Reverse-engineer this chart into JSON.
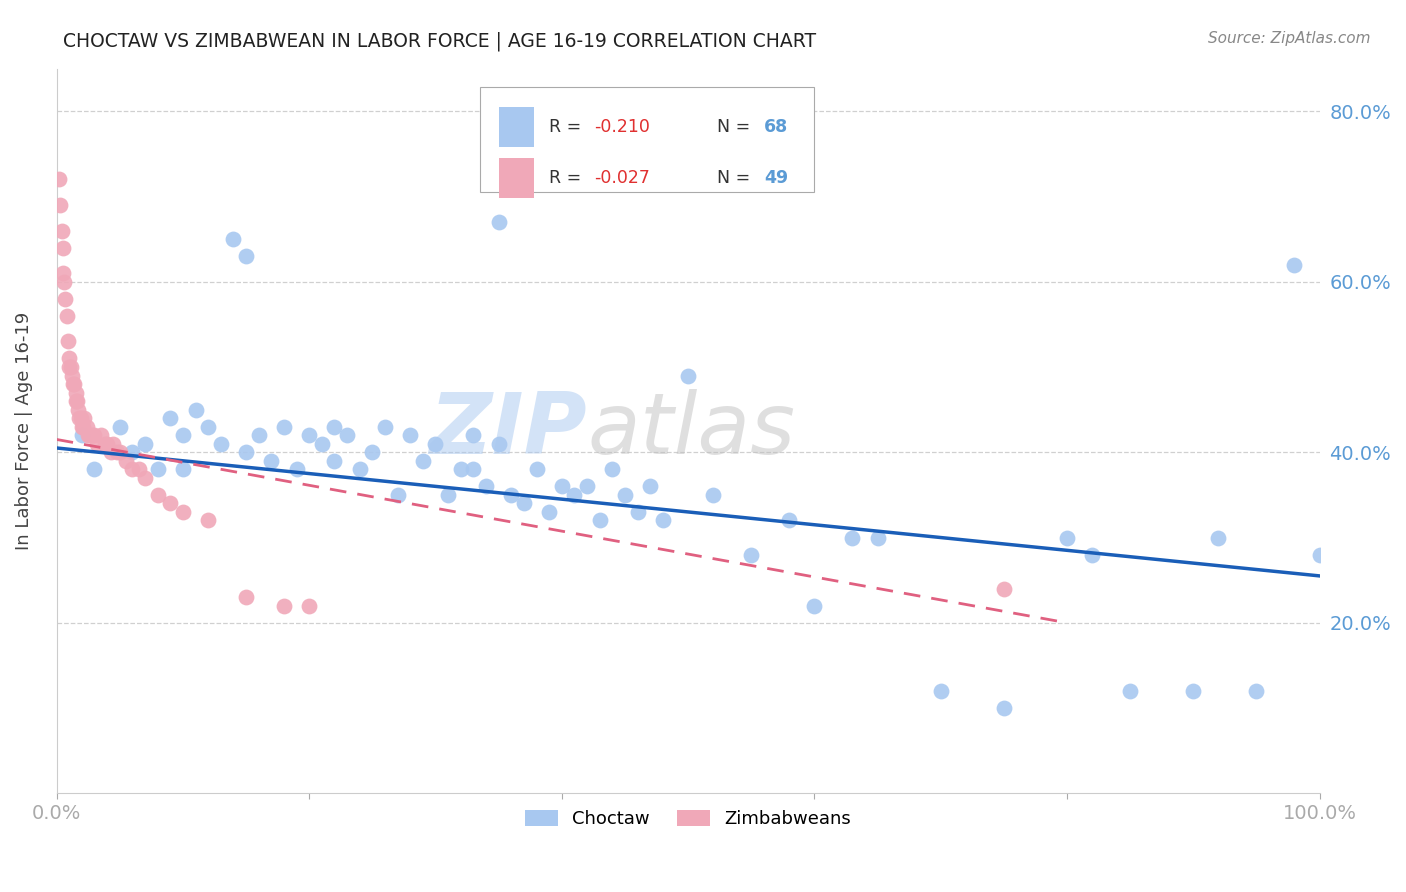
{
  "title": "CHOCTAW VS ZIMBABWEAN IN LABOR FORCE | AGE 16-19 CORRELATION CHART",
  "source": "Source: ZipAtlas.com",
  "ylabel": "In Labor Force | Age 16-19",
  "xlim": [
    0.0,
    1.0
  ],
  "ylim": [
    0.0,
    0.85
  ],
  "yticks": [
    0.2,
    0.4,
    0.6,
    0.8
  ],
  "ytick_labels": [
    "20.0%",
    "40.0%",
    "60.0%",
    "80.0%"
  ],
  "choctaw_color": "#a8c8f0",
  "zimbabwean_color": "#f0a8b8",
  "choctaw_line_color": "#1a5eb8",
  "zimbabwean_line_color": "#e06080",
  "grid_color": "#d0d0d0",
  "background_color": "#ffffff",
  "watermark_zip": "ZIP",
  "watermark_atlas": "atlas",
  "choctaw_x": [
    0.02,
    0.03,
    0.05,
    0.06,
    0.07,
    0.08,
    0.09,
    0.1,
    0.1,
    0.11,
    0.12,
    0.13,
    0.14,
    0.15,
    0.15,
    0.16,
    0.17,
    0.18,
    0.19,
    0.2,
    0.21,
    0.22,
    0.22,
    0.23,
    0.24,
    0.25,
    0.26,
    0.27,
    0.28,
    0.29,
    0.3,
    0.31,
    0.32,
    0.33,
    0.33,
    0.34,
    0.35,
    0.36,
    0.37,
    0.38,
    0.39,
    0.4,
    0.41,
    0.42,
    0.43,
    0.44,
    0.45,
    0.46,
    0.47,
    0.48,
    0.5,
    0.52,
    0.55,
    0.58,
    0.6,
    0.63,
    0.65,
    0.7,
    0.75,
    0.8,
    0.82,
    0.85,
    0.9,
    0.92,
    0.95,
    0.98,
    1.0,
    0.35
  ],
  "choctaw_y": [
    0.42,
    0.38,
    0.43,
    0.4,
    0.41,
    0.38,
    0.44,
    0.42,
    0.38,
    0.45,
    0.43,
    0.41,
    0.65,
    0.63,
    0.4,
    0.42,
    0.39,
    0.43,
    0.38,
    0.42,
    0.41,
    0.43,
    0.39,
    0.42,
    0.38,
    0.4,
    0.43,
    0.35,
    0.42,
    0.39,
    0.41,
    0.35,
    0.38,
    0.42,
    0.38,
    0.36,
    0.41,
    0.35,
    0.34,
    0.38,
    0.33,
    0.36,
    0.35,
    0.36,
    0.32,
    0.38,
    0.35,
    0.33,
    0.36,
    0.32,
    0.49,
    0.35,
    0.28,
    0.32,
    0.22,
    0.3,
    0.3,
    0.12,
    0.1,
    0.3,
    0.28,
    0.12,
    0.12,
    0.3,
    0.12,
    0.62,
    0.28,
    0.67
  ],
  "zimbabwean_x": [
    0.002,
    0.003,
    0.004,
    0.005,
    0.005,
    0.006,
    0.007,
    0.008,
    0.009,
    0.01,
    0.011,
    0.012,
    0.013,
    0.014,
    0.015,
    0.016,
    0.017,
    0.018,
    0.019,
    0.02,
    0.021,
    0.022,
    0.024,
    0.026,
    0.028,
    0.03,
    0.032,
    0.035,
    0.038,
    0.04,
    0.043,
    0.045,
    0.048,
    0.05,
    0.055,
    0.06,
    0.065,
    0.07,
    0.08,
    0.09,
    0.1,
    0.12,
    0.15,
    0.18,
    0.2,
    0.025,
    0.015,
    0.01,
    0.75
  ],
  "zimbabwean_y": [
    0.72,
    0.69,
    0.66,
    0.64,
    0.61,
    0.6,
    0.58,
    0.56,
    0.53,
    0.51,
    0.5,
    0.49,
    0.48,
    0.48,
    0.47,
    0.46,
    0.45,
    0.44,
    0.44,
    0.43,
    0.43,
    0.44,
    0.43,
    0.42,
    0.42,
    0.42,
    0.41,
    0.42,
    0.41,
    0.41,
    0.4,
    0.41,
    0.4,
    0.4,
    0.39,
    0.38,
    0.38,
    0.37,
    0.35,
    0.34,
    0.33,
    0.32,
    0.23,
    0.22,
    0.22,
    0.42,
    0.46,
    0.5,
    0.24
  ],
  "choctaw_trendline_x": [
    0.0,
    1.0
  ],
  "choctaw_trendline_y": [
    0.405,
    0.255
  ],
  "zimbabwean_trendline_x": [
    0.0,
    0.8
  ],
  "zimbabwean_trendline_y": [
    0.415,
    0.2
  ]
}
